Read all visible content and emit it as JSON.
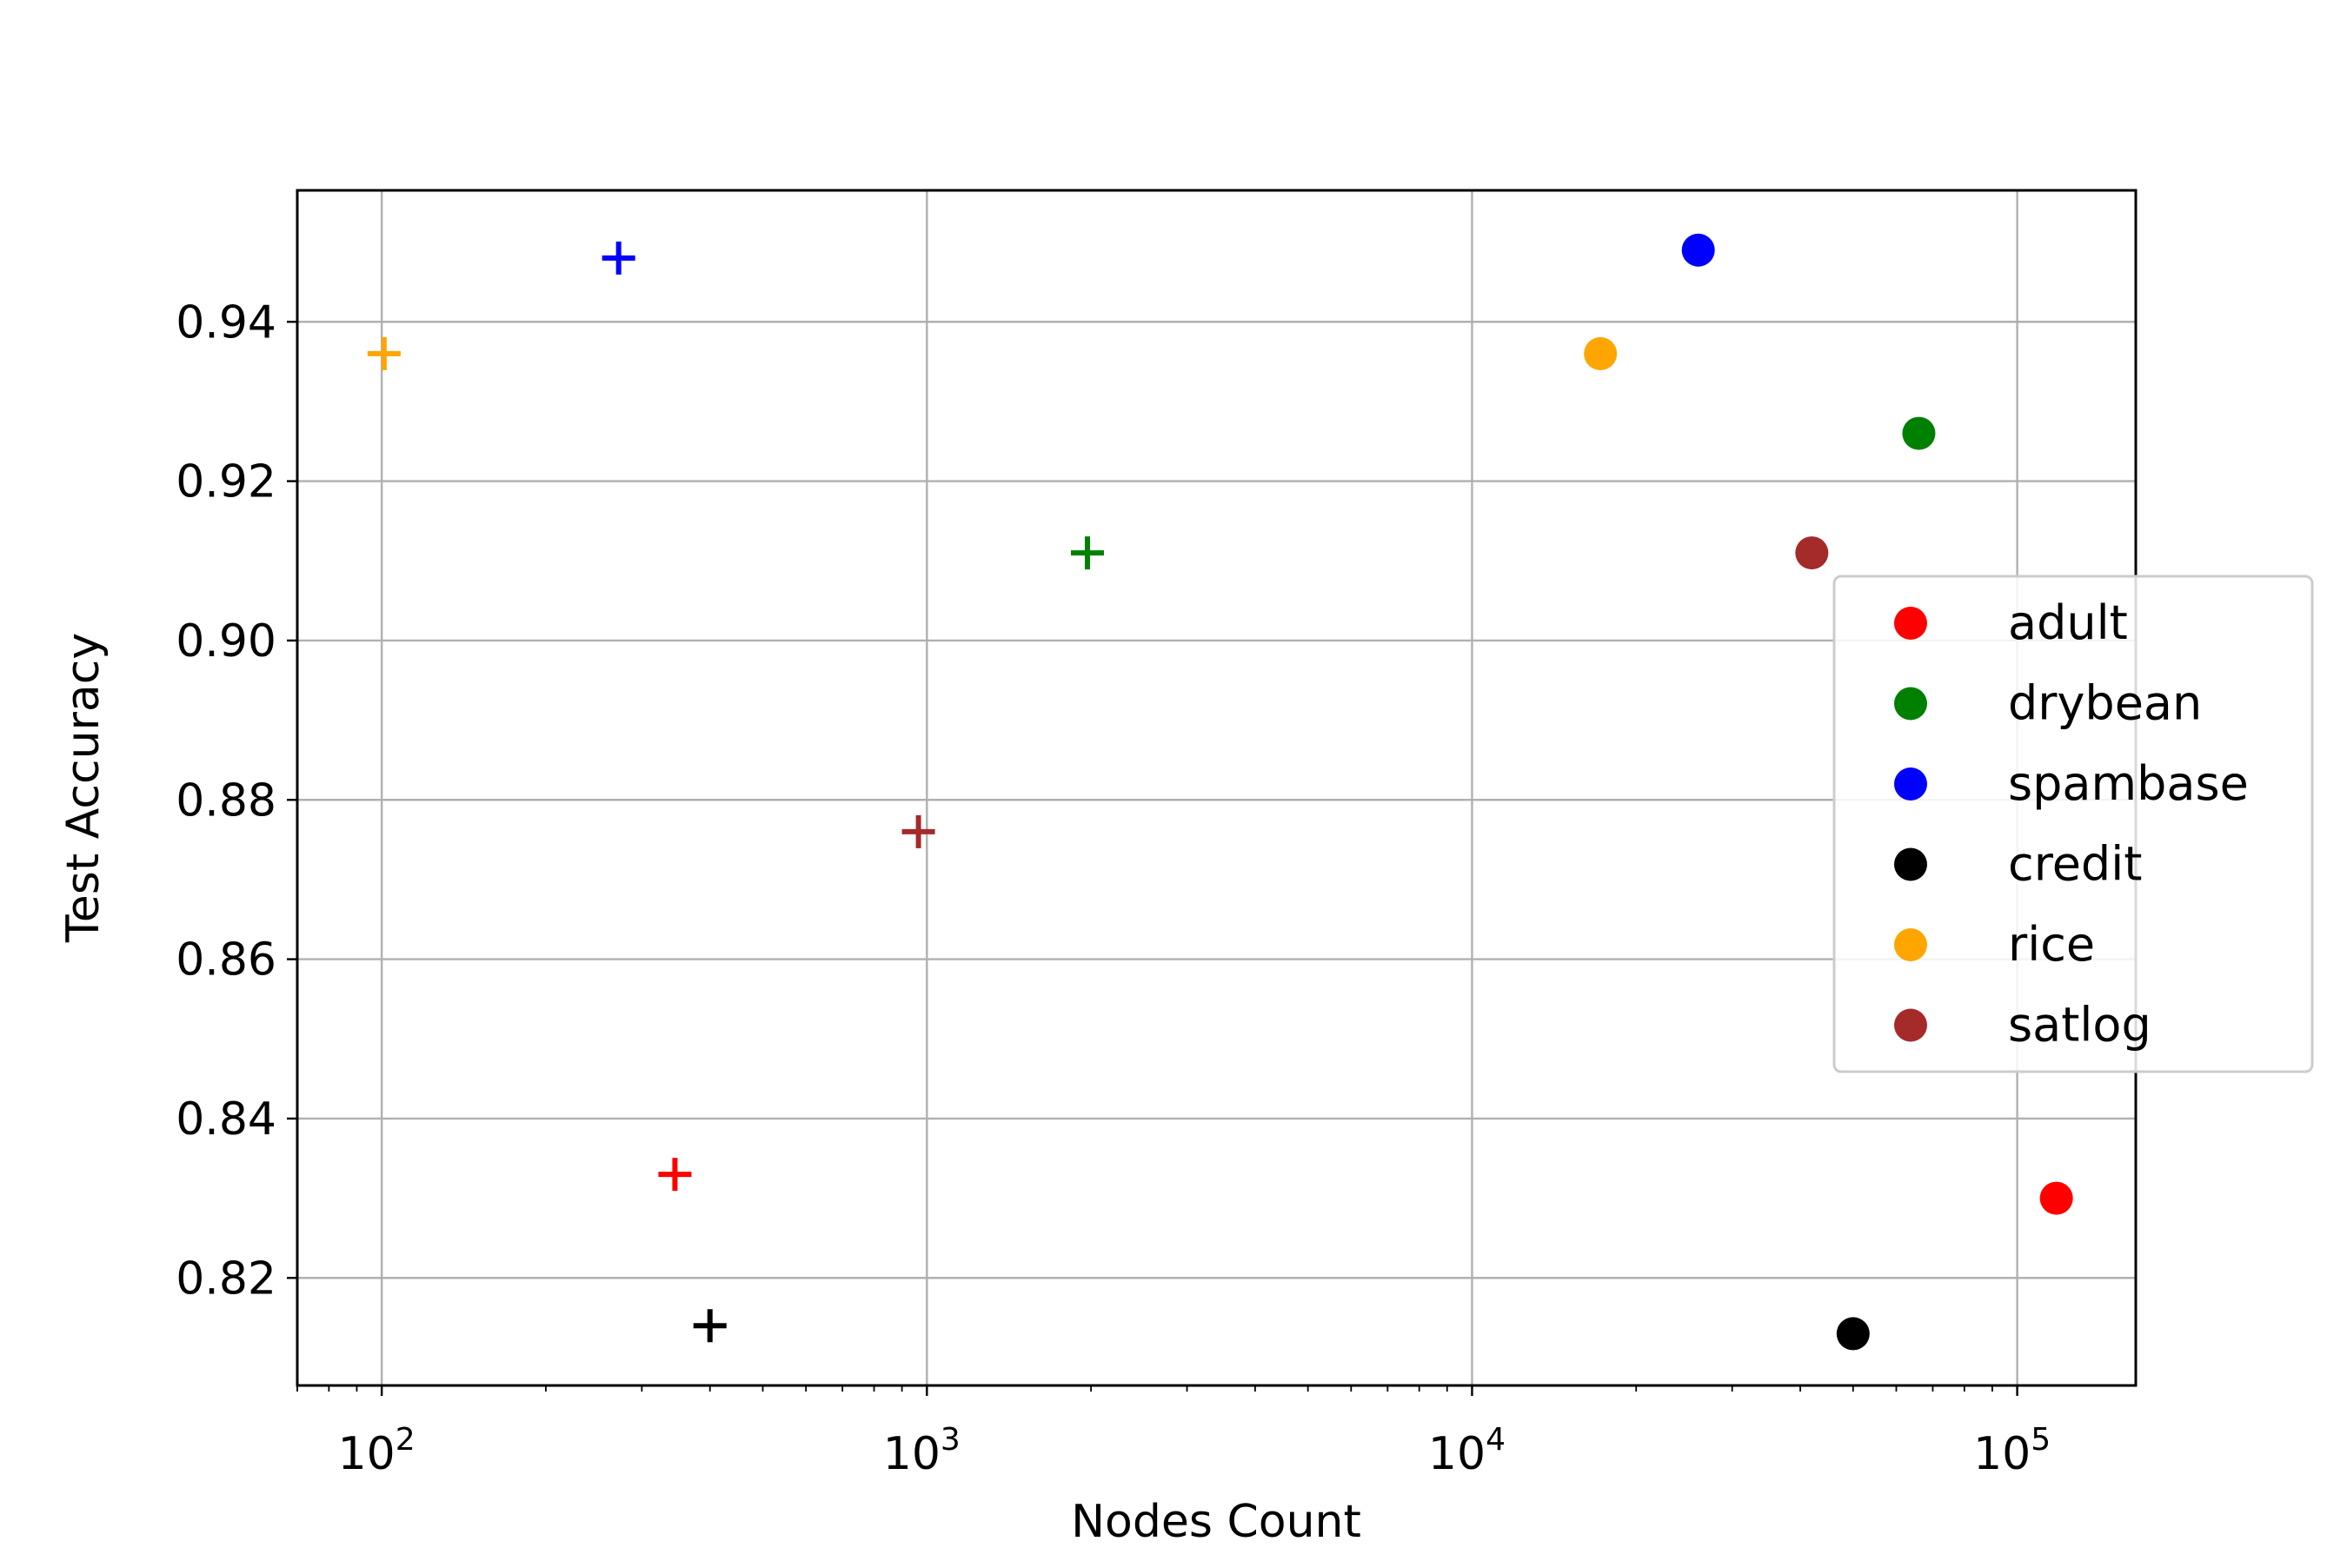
{
  "chart_data": {
    "type": "scatter",
    "title": "",
    "xlabel": "Nodes Count",
    "ylabel": "Test Accuracy",
    "xscale": "log",
    "xlim": [
      70,
      165000
    ],
    "ylim": [
      0.8065,
      0.9565
    ],
    "grid": true,
    "legend_position": "right",
    "x_ticks": [
      {
        "value": 100,
        "base": "10",
        "exp": "2"
      },
      {
        "value": 1000,
        "base": "10",
        "exp": "3"
      },
      {
        "value": 10000,
        "base": "10",
        "exp": "4"
      },
      {
        "value": 100000,
        "base": "10",
        "exp": "5"
      }
    ],
    "y_ticks": [
      {
        "value": 0.82,
        "label": "0.82"
      },
      {
        "value": 0.84,
        "label": "0.84"
      },
      {
        "value": 0.86,
        "label": "0.86"
      },
      {
        "value": 0.88,
        "label": "0.88"
      },
      {
        "value": 0.9,
        "label": "0.90"
      },
      {
        "value": 0.92,
        "label": "0.92"
      },
      {
        "value": 0.94,
        "label": "0.94"
      }
    ],
    "series": [
      {
        "name": "adult",
        "color": "#ff0000",
        "circle": {
          "x": 118000,
          "y": 0.83
        },
        "plus": {
          "x": 345,
          "y": 0.833
        }
      },
      {
        "name": "drybean",
        "color": "#008000",
        "circle": {
          "x": 66000,
          "y": 0.926
        },
        "plus": {
          "x": 1970,
          "y": 0.911
        }
      },
      {
        "name": "spambase",
        "color": "#0000ff",
        "circle": {
          "x": 26000,
          "y": 0.949
        },
        "plus": {
          "x": 272,
          "y": 0.948
        }
      },
      {
        "name": "credit",
        "color": "#000000",
        "circle": {
          "x": 50000,
          "y": 0.813
        },
        "plus": {
          "x": 400,
          "y": 0.814
        }
      },
      {
        "name": "rice",
        "color": "#ffa500",
        "circle": {
          "x": 17200,
          "y": 0.936
        },
        "plus": {
          "x": 101,
          "y": 0.936
        }
      },
      {
        "name": "satlog",
        "color": "#a52a2a",
        "circle": {
          "x": 42000,
          "y": 0.911
        },
        "plus": {
          "x": 965,
          "y": 0.876
        }
      }
    ]
  }
}
